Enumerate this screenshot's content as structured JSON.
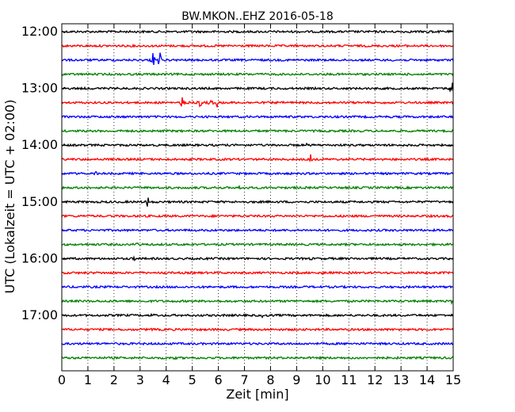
{
  "chart_data": {
    "type": "line",
    "title": "BW.MKON..EHZ 2016-05-18",
    "xlabel": "Zeit  [min]",
    "ylabel": "UTC (Lokalzeit = UTC + 02:00)",
    "xlim": [
      0,
      15
    ],
    "x_ticks": [
      "0",
      "1",
      "2",
      "3",
      "4",
      "5",
      "6",
      "7",
      "8",
      "9",
      "10",
      "11",
      "12",
      "13",
      "14",
      "15"
    ],
    "y_ticks": [
      "12:00",
      "13:00",
      "14:00",
      "15:00",
      "16:00",
      "17:00"
    ],
    "grid": {
      "x": true,
      "y": false,
      "style": "dotted"
    },
    "trace_interval_min": 15,
    "trace_colors": [
      "#000000",
      "#ff0000",
      "#0000ff",
      "#008000"
    ],
    "series": [
      {
        "start": "12:00",
        "events": [
          {
            "t": 14.0,
            "amp": 0.15
          }
        ]
      },
      {
        "start": "12:15",
        "events": [
          {
            "t": 9.0,
            "amp": 0.15
          }
        ]
      },
      {
        "start": "12:30",
        "events": [
          {
            "t": 3.5,
            "amp": 0.7
          },
          {
            "t": 3.75,
            "amp": 0.75
          }
        ]
      },
      {
        "start": "12:45",
        "events": []
      },
      {
        "start": "13:00",
        "events": [
          {
            "t": 14.95,
            "amp": 0.95
          }
        ]
      },
      {
        "start": "13:15",
        "events": [
          {
            "t": 2.0,
            "amp": 0.1
          },
          {
            "t": 4.6,
            "amp": 0.55
          },
          {
            "t": 5.3,
            "amp": 0.45
          },
          {
            "t": 5.7,
            "amp": 0.5
          },
          {
            "t": 5.95,
            "amp": 0.35
          }
        ]
      },
      {
        "start": "13:30",
        "events": []
      },
      {
        "start": "13:45",
        "events": []
      },
      {
        "start": "14:00",
        "events": [
          {
            "t": 9.35,
            "amp": 0.15
          },
          {
            "t": 14.3,
            "amp": 0.1
          }
        ]
      },
      {
        "start": "14:15",
        "events": [
          {
            "t": 9.55,
            "amp": 0.45
          }
        ]
      },
      {
        "start": "14:30",
        "events": [
          {
            "t": 1.3,
            "amp": 0.12
          }
        ]
      },
      {
        "start": "14:45",
        "events": [
          {
            "t": 6.8,
            "amp": 0.12
          }
        ]
      },
      {
        "start": "15:00",
        "events": [
          {
            "t": 3.3,
            "amp": 0.6
          }
        ]
      },
      {
        "start": "15:15",
        "events": []
      },
      {
        "start": "15:30",
        "events": []
      },
      {
        "start": "15:45",
        "events": [
          {
            "t": 2.9,
            "amp": 0.2
          }
        ]
      },
      {
        "start": "16:00",
        "events": [
          {
            "t": 2.8,
            "amp": 0.15
          },
          {
            "t": 9.5,
            "amp": 0.15
          }
        ]
      },
      {
        "start": "16:15",
        "events": [
          {
            "t": 3.9,
            "amp": 0.1
          },
          {
            "t": 10.0,
            "amp": 0.1
          }
        ]
      },
      {
        "start": "16:30",
        "events": []
      },
      {
        "start": "16:45",
        "events": [
          {
            "t": 14.95,
            "amp": 0.25
          }
        ]
      },
      {
        "start": "17:00",
        "events": [
          {
            "t": 3.5,
            "amp": 0.12
          },
          {
            "t": 7.7,
            "amp": 0.15
          }
        ]
      },
      {
        "start": "17:15",
        "events": [
          {
            "t": 3.4,
            "amp": 0.15
          }
        ]
      },
      {
        "start": "17:30",
        "events": []
      },
      {
        "start": "17:45",
        "events": [
          {
            "t": 4.3,
            "amp": 0.15
          }
        ]
      }
    ]
  }
}
